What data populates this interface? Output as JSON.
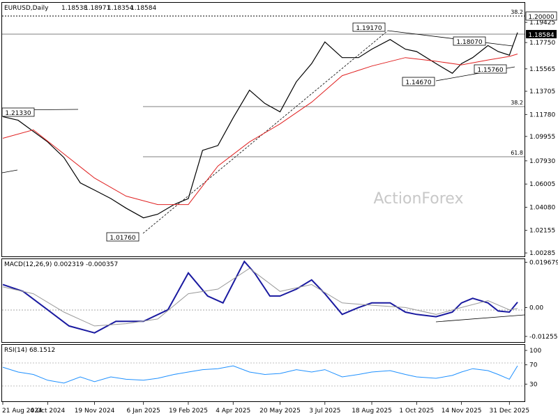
{
  "chart_data": [
    {
      "type": "line",
      "panel": "price",
      "header": {
        "symbol": "EURUSD,Daily",
        "open": "1.18538",
        "high": "1.18971",
        "low": "1.18354",
        "close": "1.18584"
      },
      "watermark": "ActionForex",
      "ylim": [
        1.0,
        1.2105
      ],
      "y_ticks": [
        "1.19425",
        "1.17750",
        "1.15565",
        "1.13705",
        "1.11780",
        "1.09955",
        "1.07930",
        "1.06005",
        "1.04080",
        "1.02155",
        "1.00285"
      ],
      "x_ticks": [
        "21 Aug 2024",
        "4 Oct 2024",
        "19 Nov 2024",
        "6 Jan 2025",
        "19 Feb 2025",
        "4 Apr 2025",
        "20 May 2025",
        "3 Jul 2025",
        "18 Aug 2025",
        "1 Oct 2025",
        "14 Nov 2025",
        "31 Dec 2025"
      ],
      "price_labels": {
        "level_200": "1.20000",
        "current": "1.18584"
      },
      "annotations": [
        "1.21330",
        "1.19170",
        "1.18070",
        "1.15760",
        "1.14670",
        "1.01760"
      ],
      "fib_labels": [
        "38.2",
        "38.2",
        "61.8"
      ],
      "series": [
        {
          "label": "price",
          "color": "#000000",
          "x": [
            "2024-08-21",
            "2024-09-05",
            "2024-10-04",
            "2024-10-20",
            "2024-11-05",
            "2024-11-19",
            "2024-12-05",
            "2024-12-20",
            "2025-01-06",
            "2025-01-20",
            "2025-02-05",
            "2025-02-19",
            "2025-03-05",
            "2025-03-20",
            "2025-04-04",
            "2025-04-20",
            "2025-05-05",
            "2025-05-20",
            "2025-06-05",
            "2025-06-20",
            "2025-07-03",
            "2025-07-20",
            "2025-08-05",
            "2025-08-18",
            "2025-09-05",
            "2025-09-20",
            "2025-10-01",
            "2025-10-20",
            "2025-11-05",
            "2025-11-14",
            "2025-11-25",
            "2025-12-10",
            "2025-12-20",
            "2025-12-31",
            "2026-01-08"
          ],
          "y": [
            1.116,
            1.113,
            1.095,
            1.082,
            1.061,
            1.055,
            1.048,
            1.04,
            1.032,
            1.035,
            1.043,
            1.048,
            1.088,
            1.092,
            1.115,
            1.138,
            1.127,
            1.12,
            1.145,
            1.16,
            1.178,
            1.165,
            1.165,
            1.172,
            1.18,
            1.172,
            1.17,
            1.16,
            1.152,
            1.16,
            1.165,
            1.175,
            1.17,
            1.167,
            1.1858
          ]
        },
        {
          "label": "moving average",
          "color": "#e02020",
          "x": [
            "2024-08-21",
            "2024-09-20",
            "2024-10-20",
            "2024-11-19",
            "2024-12-20",
            "2025-01-20",
            "2025-02-19",
            "2025-03-20",
            "2025-04-20",
            "2025-05-20",
            "2025-06-20",
            "2025-07-20",
            "2025-08-18",
            "2025-09-20",
            "2025-10-20",
            "2025-11-14",
            "2025-12-10",
            "2025-12-31",
            "2026-01-08"
          ],
          "y": [
            1.098,
            1.105,
            1.085,
            1.065,
            1.05,
            1.043,
            1.043,
            1.075,
            1.095,
            1.11,
            1.128,
            1.15,
            1.158,
            1.165,
            1.162,
            1.159,
            1.163,
            1.166,
            1.168
          ]
        }
      ]
    },
    {
      "type": "line",
      "panel": "macd",
      "title": "MACD(12,26,9) 0.002319 -0.000357",
      "ylim": [
        -0.015,
        0.021
      ],
      "y_ticks": [
        "0.019679",
        "0.00",
        "-0.012552"
      ],
      "series": [
        {
          "label": "macd",
          "color": "#1a1aa0",
          "x": [
            "2024-08-21",
            "2024-09-10",
            "2024-10-04",
            "2024-10-25",
            "2024-11-19",
            "2024-12-10",
            "2025-01-06",
            "2025-01-30",
            "2025-02-19",
            "2025-03-10",
            "2025-03-25",
            "2025-04-15",
            "2025-04-25",
            "2025-05-10",
            "2025-05-20",
            "2025-06-05",
            "2025-06-20",
            "2025-07-03",
            "2025-07-20",
            "2025-08-05",
            "2025-08-18",
            "2025-09-05",
            "2025-09-20",
            "2025-10-01",
            "2025-10-20",
            "2025-11-05",
            "2025-11-14",
            "2025-11-25",
            "2025-12-10",
            "2025-12-20",
            "2025-12-31",
            "2026-01-08"
          ],
          "y": [
            0.01,
            0.007,
            -0.001,
            -0.008,
            -0.011,
            -0.006,
            -0.006,
            -0.001,
            0.015,
            0.005,
            0.002,
            0.02,
            0.015,
            0.005,
            0.005,
            0.008,
            0.012,
            0.006,
            -0.003,
            0.0,
            0.002,
            0.002,
            -0.002,
            -0.003,
            -0.004,
            -0.002,
            0.002,
            0.004,
            0.002,
            -0.0015,
            -0.002,
            0.0023
          ]
        },
        {
          "label": "signal",
          "color": "#999999",
          "x": [
            "2024-08-21",
            "2024-09-20",
            "2024-10-20",
            "2024-11-19",
            "2024-12-20",
            "2025-01-20",
            "2025-02-19",
            "2025-03-20",
            "2025-04-20",
            "2025-05-20",
            "2025-06-20",
            "2025-07-20",
            "2025-08-18",
            "2025-09-20",
            "2025-10-20",
            "2025-11-14",
            "2025-12-10",
            "2025-12-31",
            "2026-01-08"
          ],
          "y": [
            0.009,
            0.006,
            -0.002,
            -0.008,
            -0.007,
            -0.005,
            0.006,
            0.008,
            0.017,
            0.007,
            0.01,
            0.002,
            0.001,
            0.0,
            -0.003,
            0.0,
            0.003,
            -0.001,
            -0.0004
          ]
        }
      ]
    },
    {
      "type": "line",
      "panel": "rsi",
      "title": "RSI(14) 68.1512",
      "ylim": [
        0,
        100
      ],
      "y_ticks": [
        "100",
        "70",
        "30",
        "0"
      ],
      "series": [
        {
          "label": "rsi",
          "color": "#1e90ff",
          "x": [
            "2024-08-21",
            "2024-09-05",
            "2024-09-20",
            "2024-10-04",
            "2024-10-20",
            "2024-11-05",
            "2024-11-19",
            "2024-12-05",
            "2024-12-20",
            "2025-01-06",
            "2025-01-20",
            "2025-02-05",
            "2025-02-19",
            "2025-03-05",
            "2025-03-20",
            "2025-04-04",
            "2025-04-20",
            "2025-05-05",
            "2025-05-20",
            "2025-06-05",
            "2025-06-20",
            "2025-07-03",
            "2025-07-20",
            "2025-08-05",
            "2025-08-18",
            "2025-09-05",
            "2025-09-20",
            "2025-10-01",
            "2025-10-20",
            "2025-11-05",
            "2025-11-14",
            "2025-11-25",
            "2025-12-10",
            "2025-12-20",
            "2025-12-31",
            "2026-01-08"
          ],
          "y": [
            65,
            55,
            50,
            38,
            32,
            45,
            35,
            45,
            40,
            38,
            42,
            50,
            55,
            60,
            62,
            68,
            55,
            50,
            52,
            60,
            55,
            60,
            45,
            50,
            55,
            58,
            50,
            45,
            42,
            48,
            55,
            62,
            58,
            50,
            40,
            68
          ]
        }
      ]
    }
  ]
}
